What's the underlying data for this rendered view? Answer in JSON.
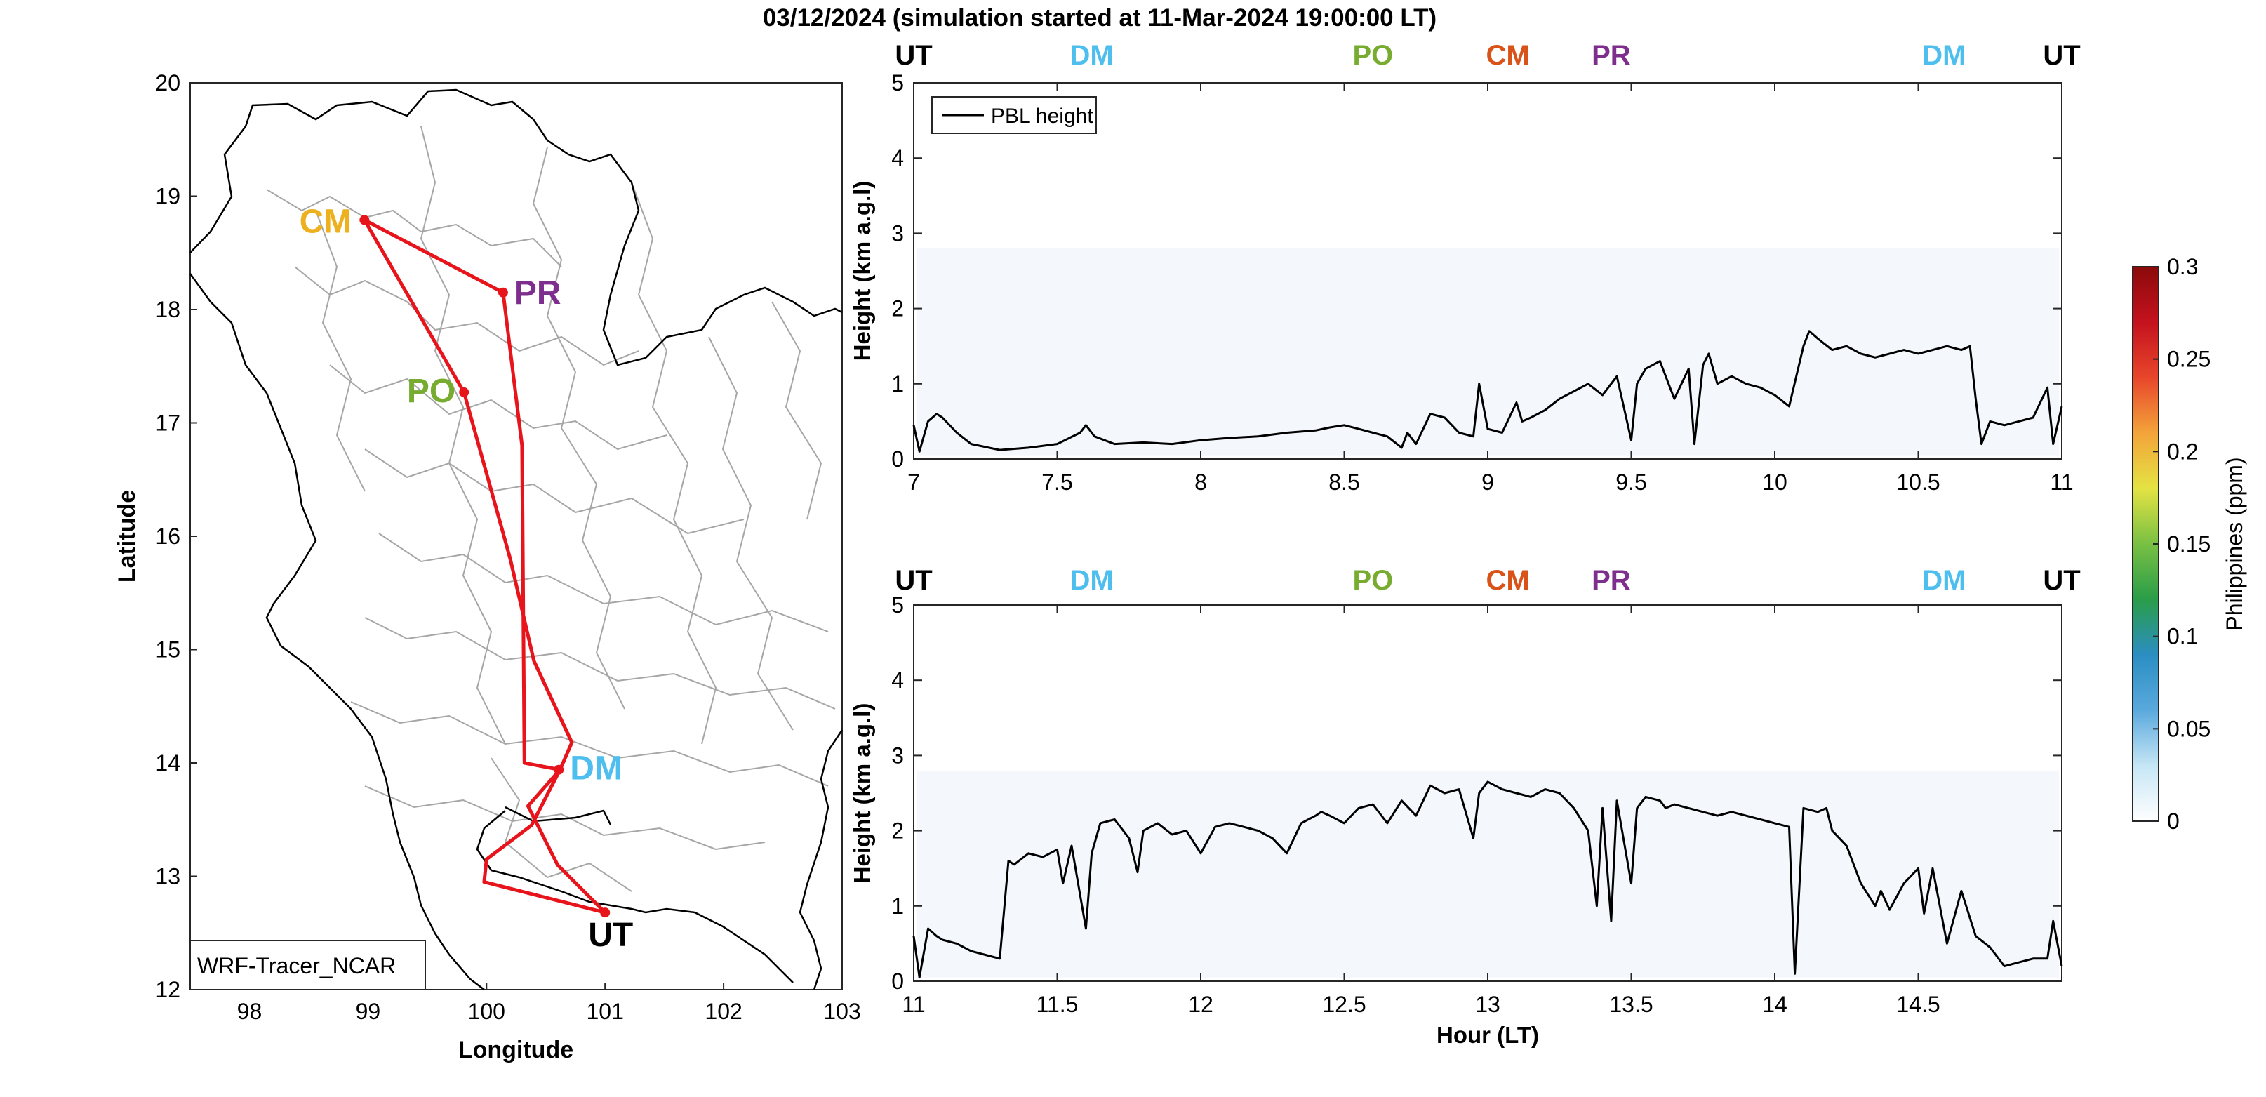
{
  "figure": {
    "title": "03/12/2024 (simulation started at 11-Mar-2024 19:00:00 LT)"
  },
  "map": {
    "xlabel": "Longitude",
    "ylabel": "Latitude",
    "xticks": [
      "98",
      "99",
      "100",
      "101",
      "102",
      "103"
    ],
    "yticks": [
      "12",
      "13",
      "14",
      "15",
      "16",
      "17",
      "18",
      "19",
      "20"
    ],
    "xlim": [
      97.5,
      103
    ],
    "ylim": [
      12,
      20
    ],
    "model_label": "WRF-Tracer_NCAR",
    "route_color": "#e8141b",
    "stations": [
      {
        "name": "CM",
        "lon": 98.97,
        "lat": 18.79,
        "color": "#edb120"
      },
      {
        "name": "PR",
        "lon": 100.14,
        "lat": 18.15,
        "color": "#7e2f8e"
      },
      {
        "name": "PO",
        "lon": 99.81,
        "lat": 17.27,
        "color": "#77ac30"
      },
      {
        "name": "DM",
        "lon": 100.61,
        "lat": 13.94,
        "color": "#4dbeee"
      },
      {
        "name": "UT",
        "lon": 101.0,
        "lat": 12.68,
        "color": "#000000"
      }
    ],
    "route": [
      [
        101.0,
        12.68
      ],
      [
        100.6,
        13.1
      ],
      [
        100.35,
        13.62
      ],
      [
        100.62,
        13.94
      ],
      [
        100.72,
        14.18
      ],
      [
        100.4,
        14.9
      ],
      [
        100.2,
        15.8
      ],
      [
        99.81,
        17.27
      ],
      [
        98.97,
        18.79
      ],
      [
        100.14,
        18.15
      ],
      [
        100.3,
        16.8
      ],
      [
        100.32,
        14.0
      ],
      [
        100.62,
        13.94
      ],
      [
        100.38,
        13.45
      ],
      [
        100.0,
        13.15
      ],
      [
        99.98,
        12.95
      ],
      [
        101.0,
        12.68
      ]
    ]
  },
  "chart_data": [
    {
      "type": "line",
      "title": "",
      "xlabel": "",
      "ylabel": "Height (km a.g.l)",
      "xlim": [
        7,
        11
      ],
      "ylim": [
        0,
        5
      ],
      "xticks": [
        "7",
        "7.5",
        "8",
        "8.5",
        "9",
        "9.5",
        "10",
        "10.5",
        "11"
      ],
      "yticks": [
        "0",
        "1",
        "2",
        "3",
        "4",
        "5"
      ],
      "legend": "top-left",
      "series": [
        {
          "name": "PBL height",
          "x": [
            7.0,
            7.02,
            7.05,
            7.08,
            7.1,
            7.15,
            7.2,
            7.3,
            7.4,
            7.5,
            7.58,
            7.6,
            7.63,
            7.7,
            7.8,
            7.9,
            8.0,
            8.1,
            8.2,
            8.3,
            8.4,
            8.45,
            8.5,
            8.55,
            8.6,
            8.65,
            8.7,
            8.72,
            8.75,
            8.8,
            8.85,
            8.9,
            8.95,
            8.97,
            9.0,
            9.05,
            9.1,
            9.12,
            9.15,
            9.2,
            9.25,
            9.3,
            9.35,
            9.4,
            9.45,
            9.5,
            9.52,
            9.55,
            9.6,
            9.62,
            9.65,
            9.7,
            9.72,
            9.75,
            9.77,
            9.8,
            9.85,
            9.9,
            9.95,
            10.0,
            10.05,
            10.1,
            10.12,
            10.15,
            10.2,
            10.25,
            10.3,
            10.35,
            10.4,
            10.45,
            10.5,
            10.55,
            10.6,
            10.65,
            10.68,
            10.7,
            10.72,
            10.75,
            10.8,
            10.85,
            10.9,
            10.95,
            10.97,
            11.0
          ],
          "y": [
            0.45,
            0.1,
            0.5,
            0.6,
            0.55,
            0.35,
            0.2,
            0.12,
            0.15,
            0.2,
            0.35,
            0.45,
            0.3,
            0.2,
            0.22,
            0.2,
            0.25,
            0.28,
            0.3,
            0.35,
            0.38,
            0.42,
            0.45,
            0.4,
            0.35,
            0.3,
            0.15,
            0.35,
            0.2,
            0.6,
            0.55,
            0.35,
            0.3,
            1.0,
            0.4,
            0.35,
            0.75,
            0.5,
            0.55,
            0.65,
            0.8,
            0.9,
            1.0,
            0.85,
            1.1,
            0.25,
            1.0,
            1.2,
            1.3,
            1.1,
            0.8,
            1.2,
            0.2,
            1.25,
            1.4,
            1.0,
            1.1,
            1.0,
            0.95,
            0.85,
            0.7,
            1.5,
            1.7,
            1.6,
            1.45,
            1.5,
            1.4,
            1.35,
            1.4,
            1.45,
            1.4,
            1.45,
            1.5,
            1.45,
            1.5,
            0.8,
            0.2,
            0.5,
            0.45,
            0.5,
            0.55,
            0.95,
            0.2,
            0.7
          ]
        }
      ]
    },
    {
      "type": "line",
      "title": "",
      "xlabel": "Hour (LT)",
      "ylabel": "Height (km a.g.l)",
      "xlim": [
        11,
        15
      ],
      "ylim": [
        0,
        5
      ],
      "xticks": [
        "11",
        "11.5",
        "12",
        "12.5",
        "13",
        "13.5",
        "14",
        "14.5"
      ],
      "yticks": [
        "0",
        "1",
        "2",
        "3",
        "4",
        "5"
      ],
      "series": [
        {
          "name": "PBL height",
          "x": [
            11.0,
            11.02,
            11.05,
            11.08,
            11.1,
            11.15,
            11.2,
            11.25,
            11.3,
            11.33,
            11.35,
            11.4,
            11.45,
            11.5,
            11.52,
            11.55,
            11.6,
            11.62,
            11.65,
            11.7,
            11.75,
            11.78,
            11.8,
            11.85,
            11.9,
            11.95,
            12.0,
            12.05,
            12.1,
            12.15,
            12.2,
            12.25,
            12.3,
            12.35,
            12.4,
            12.42,
            12.45,
            12.5,
            12.55,
            12.6,
            12.65,
            12.7,
            12.75,
            12.8,
            12.85,
            12.9,
            12.95,
            12.97,
            13.0,
            13.05,
            13.1,
            13.15,
            13.2,
            13.25,
            13.3,
            13.35,
            13.38,
            13.4,
            13.43,
            13.45,
            13.5,
            13.52,
            13.55,
            13.6,
            13.62,
            13.65,
            13.7,
            13.75,
            13.8,
            13.85,
            13.9,
            13.95,
            14.0,
            14.05,
            14.07,
            14.1,
            14.15,
            14.18,
            14.2,
            14.25,
            14.3,
            14.35,
            14.37,
            14.4,
            14.45,
            14.5,
            14.52,
            14.55,
            14.6,
            14.65,
            14.7,
            14.75,
            14.8,
            14.85,
            14.9,
            14.95,
            14.97,
            15.0
          ],
          "y": [
            0.6,
            0.05,
            0.7,
            0.6,
            0.55,
            0.5,
            0.4,
            0.35,
            0.3,
            1.6,
            1.55,
            1.7,
            1.65,
            1.75,
            1.3,
            1.8,
            0.7,
            1.7,
            2.1,
            2.15,
            1.9,
            1.45,
            2.0,
            2.1,
            1.95,
            2.0,
            1.7,
            2.05,
            2.1,
            2.05,
            2.0,
            1.9,
            1.7,
            2.1,
            2.2,
            2.25,
            2.2,
            2.1,
            2.3,
            2.35,
            2.1,
            2.4,
            2.2,
            2.6,
            2.5,
            2.55,
            1.9,
            2.5,
            2.65,
            2.55,
            2.5,
            2.45,
            2.55,
            2.5,
            2.3,
            2.0,
            1.0,
            2.3,
            0.8,
            2.4,
            1.3,
            2.3,
            2.45,
            2.4,
            2.3,
            2.35,
            2.3,
            2.25,
            2.2,
            2.25,
            2.2,
            2.15,
            2.1,
            2.05,
            0.1,
            2.3,
            2.25,
            2.3,
            2.0,
            1.8,
            1.3,
            1.0,
            1.2,
            0.95,
            1.3,
            1.5,
            0.9,
            1.5,
            0.5,
            1.2,
            0.6,
            0.45,
            0.2,
            0.25,
            0.3,
            0.3,
            0.8,
            0.2
          ]
        }
      ]
    }
  ],
  "station_strip": [
    {
      "label": "UT",
      "hour": 7.0,
      "color": "#000000"
    },
    {
      "label": "DM",
      "hour": 7.62,
      "color": "#4dbeee"
    },
    {
      "label": "PO",
      "hour": 8.6,
      "color": "#77ac30"
    },
    {
      "label": "CM",
      "hour": 9.07,
      "color": "#d95319"
    },
    {
      "label": "PR",
      "hour": 9.43,
      "color": "#7e2f8e"
    },
    {
      "label": "DM",
      "hour": 10.59,
      "color": "#4dbeee"
    },
    {
      "label": "UT",
      "hour": 11.0,
      "color": "#000000"
    }
  ],
  "colorbar": {
    "label": "Philippines (ppm)",
    "ticks": [
      "0",
      "0.05",
      "0.1",
      "0.15",
      "0.2",
      "0.25",
      "0.3"
    ],
    "colors": [
      "#ffffff",
      "#c6e6f5",
      "#5aa9dd",
      "#2b8ec2",
      "#2a9d49",
      "#79c043",
      "#e4e343",
      "#f3a43a",
      "#e8462b",
      "#c4121e",
      "#8b0a0a"
    ]
  }
}
